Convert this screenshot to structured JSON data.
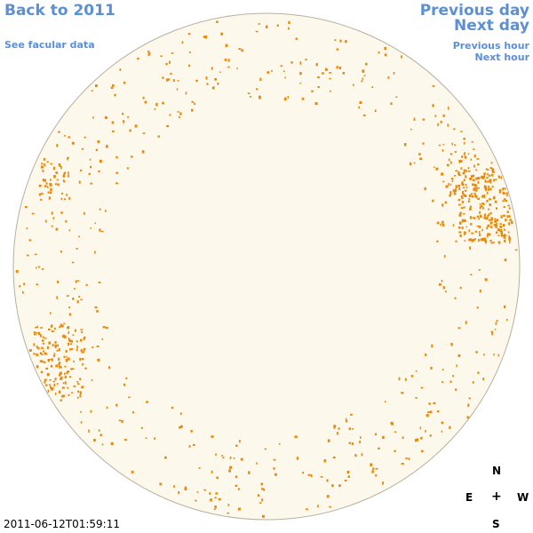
{
  "nav": {
    "back_label": "Back to 2011",
    "facular_label": "See facular data",
    "prev_day_label": "Previous day",
    "next_day_label": "Next day",
    "prev_hour_label": "Previous hour",
    "next_hour_label": "Next hour"
  },
  "compass": {
    "north": "N",
    "east": "E",
    "center": "+",
    "west": "W",
    "south": "S"
  },
  "timestamp": "2011-06-12T01:59:11",
  "colors": {
    "disk_fill": "#fdf8ec",
    "disk_stroke": "#b8b0a0",
    "facula": "#e8890c",
    "link": "#5b8fd6"
  }
}
